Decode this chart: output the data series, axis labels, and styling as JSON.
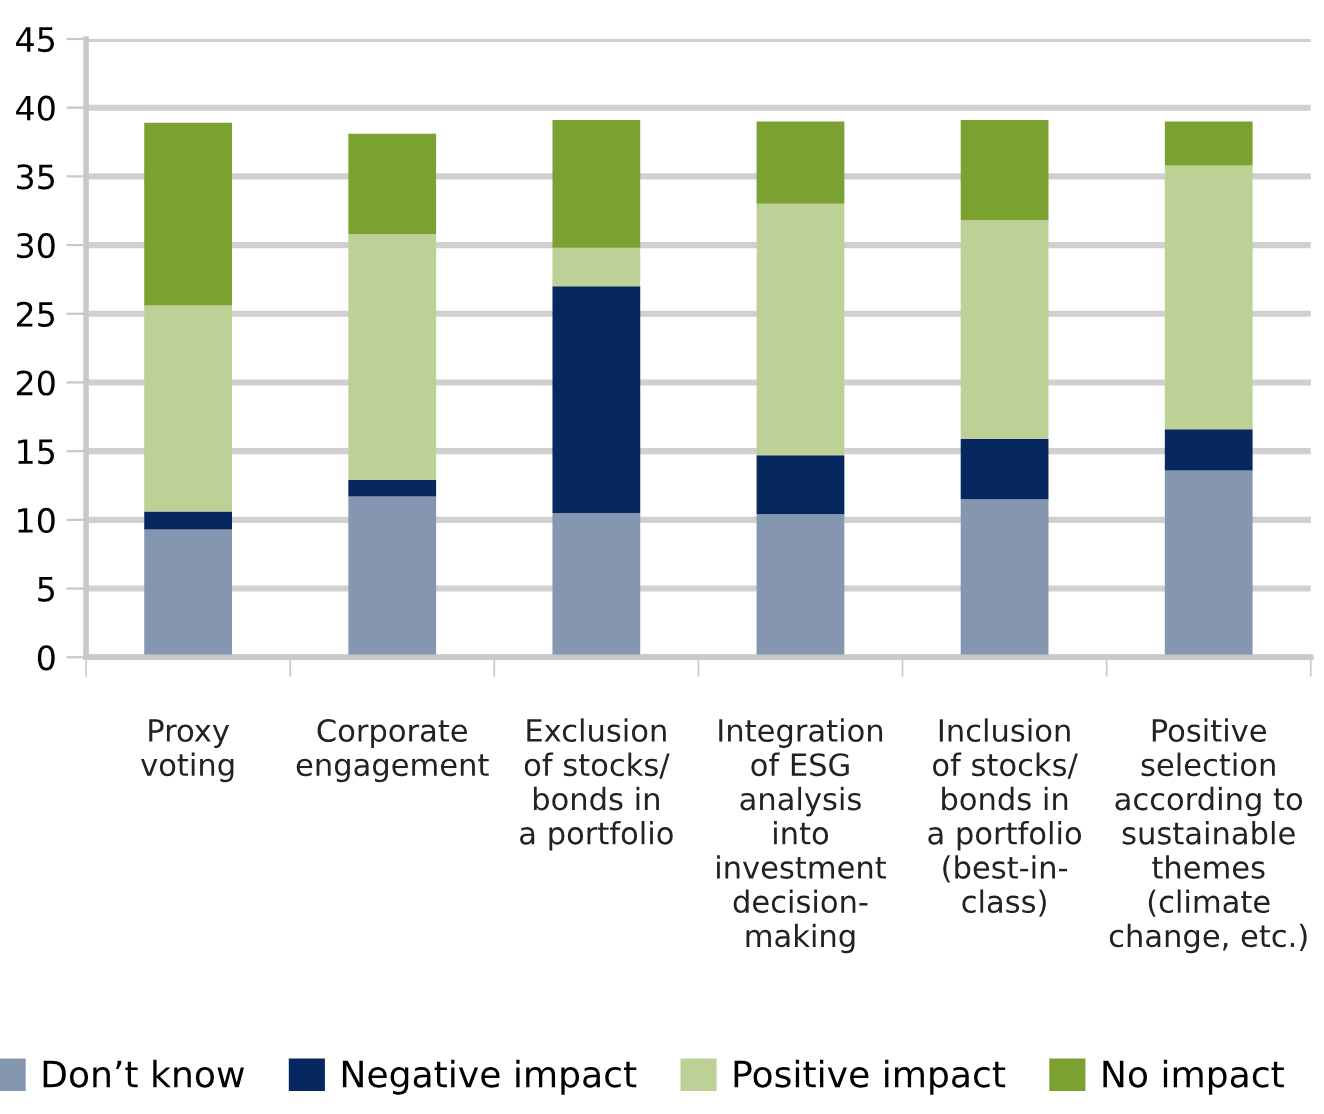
{
  "chart_data": {
    "type": "bar",
    "stacked": true,
    "categories": [
      "Proxy\nvoting",
      "Corporate\nengagement",
      "Exclusion\nof stocks/\nbonds in\na portfolio",
      "Integration\nof ESG\nanalysis\ninto\ninvestment\ndecision-\nmaking",
      "Inclusion\nof stocks/\nbonds in\na portfolio\n(best-in-\nclass)",
      "Positive\nselection\naccording to\nsustainable\nthemes\n(climate\nchange, etc.)"
    ],
    "series": [
      {
        "name": "Don’t know",
        "color": "#8496b0",
        "values": [
          9.3,
          11.7,
          10.5,
          10.4,
          11.5,
          13.6
        ]
      },
      {
        "name": "Negative impact",
        "color": "#06285e",
        "values": [
          1.3,
          1.2,
          16.5,
          4.3,
          4.4,
          3.0
        ]
      },
      {
        "name": "Positive impact",
        "color": "#bdd197",
        "values": [
          15.0,
          17.9,
          2.8,
          18.3,
          15.9,
          19.2
        ]
      },
      {
        "name": "No impact",
        "color": "#7ba230",
        "values": [
          13.3,
          7.3,
          9.3,
          6.0,
          7.3,
          3.2
        ]
      }
    ],
    "ylim": [
      0,
      45
    ],
    "yticks": [
      0,
      5,
      10,
      15,
      20,
      25,
      30,
      35,
      40,
      45
    ],
    "grid": "y",
    "legend": "bottom"
  }
}
